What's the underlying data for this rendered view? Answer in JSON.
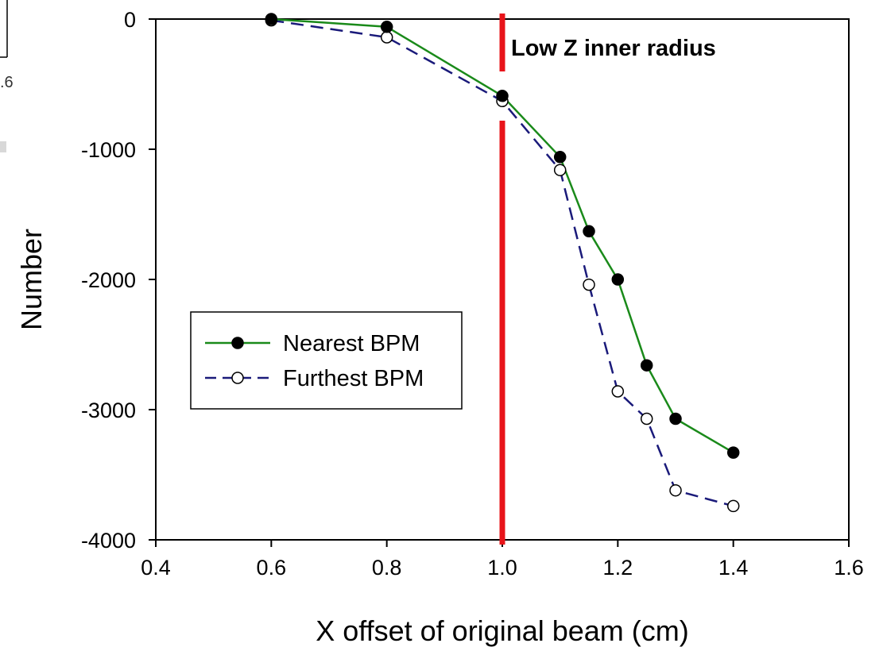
{
  "inset_fragment": {
    "tick_label": ".6"
  },
  "chart_data": {
    "type": "line",
    "title": "",
    "xlabel": "X offset of original beam (cm)",
    "ylabel": "Number",
    "xlim": [
      0.4,
      1.6
    ],
    "ylim": [
      -4000,
      0
    ],
    "x_ticks": [
      0.4,
      0.6,
      0.8,
      1.0,
      1.2,
      1.4,
      1.6
    ],
    "x_tick_labels": [
      "0.4",
      "0.6",
      "0.8",
      "1.0",
      "1.2",
      "1.4",
      "1.6"
    ],
    "y_ticks": [
      0,
      -1000,
      -2000,
      -3000,
      -4000
    ],
    "y_tick_labels": [
      "0",
      "-1000",
      "-2000",
      "-3000",
      "-4000"
    ],
    "grid": false,
    "legend_position": "middle-left",
    "series": [
      {
        "name": "Nearest BPM",
        "color": "#1a8a1a",
        "line_style": "solid",
        "marker": "filled-circle",
        "x": [
          0.6,
          0.8,
          1.0,
          1.1,
          1.15,
          1.2,
          1.25,
          1.3,
          1.4
        ],
        "y": [
          0,
          -60,
          -590,
          -1060,
          -1630,
          -2000,
          -2660,
          -3070,
          -3330
        ]
      },
      {
        "name": "Furthest BPM",
        "color": "#1a1a7a",
        "line_style": "dashed",
        "marker": "open-circle",
        "x": [
          0.6,
          0.8,
          1.0,
          1.1,
          1.15,
          1.2,
          1.25,
          1.3,
          1.4
        ],
        "y": [
          -10,
          -140,
          -630,
          -1160,
          -2040,
          -2860,
          -3070,
          -3620,
          -3740
        ]
      }
    ],
    "annotations": [
      {
        "type": "vertical-line",
        "x": 1.0,
        "color": "#e8141a",
        "label": "Low Z inner radius"
      }
    ]
  }
}
